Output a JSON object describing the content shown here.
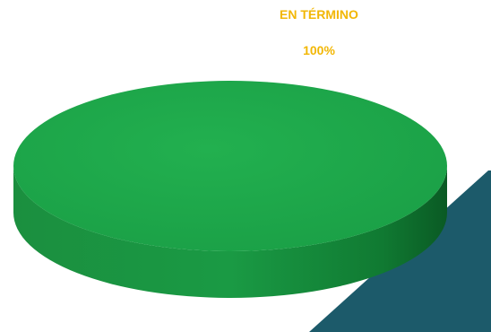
{
  "chart_data": {
    "type": "pie",
    "categories": [
      "EN TÉRMINO"
    ],
    "values": [
      100
    ],
    "value_labels": [
      "100%"
    ],
    "colors": [
      "#1fa64a"
    ],
    "label_color": "#f2b705"
  }
}
